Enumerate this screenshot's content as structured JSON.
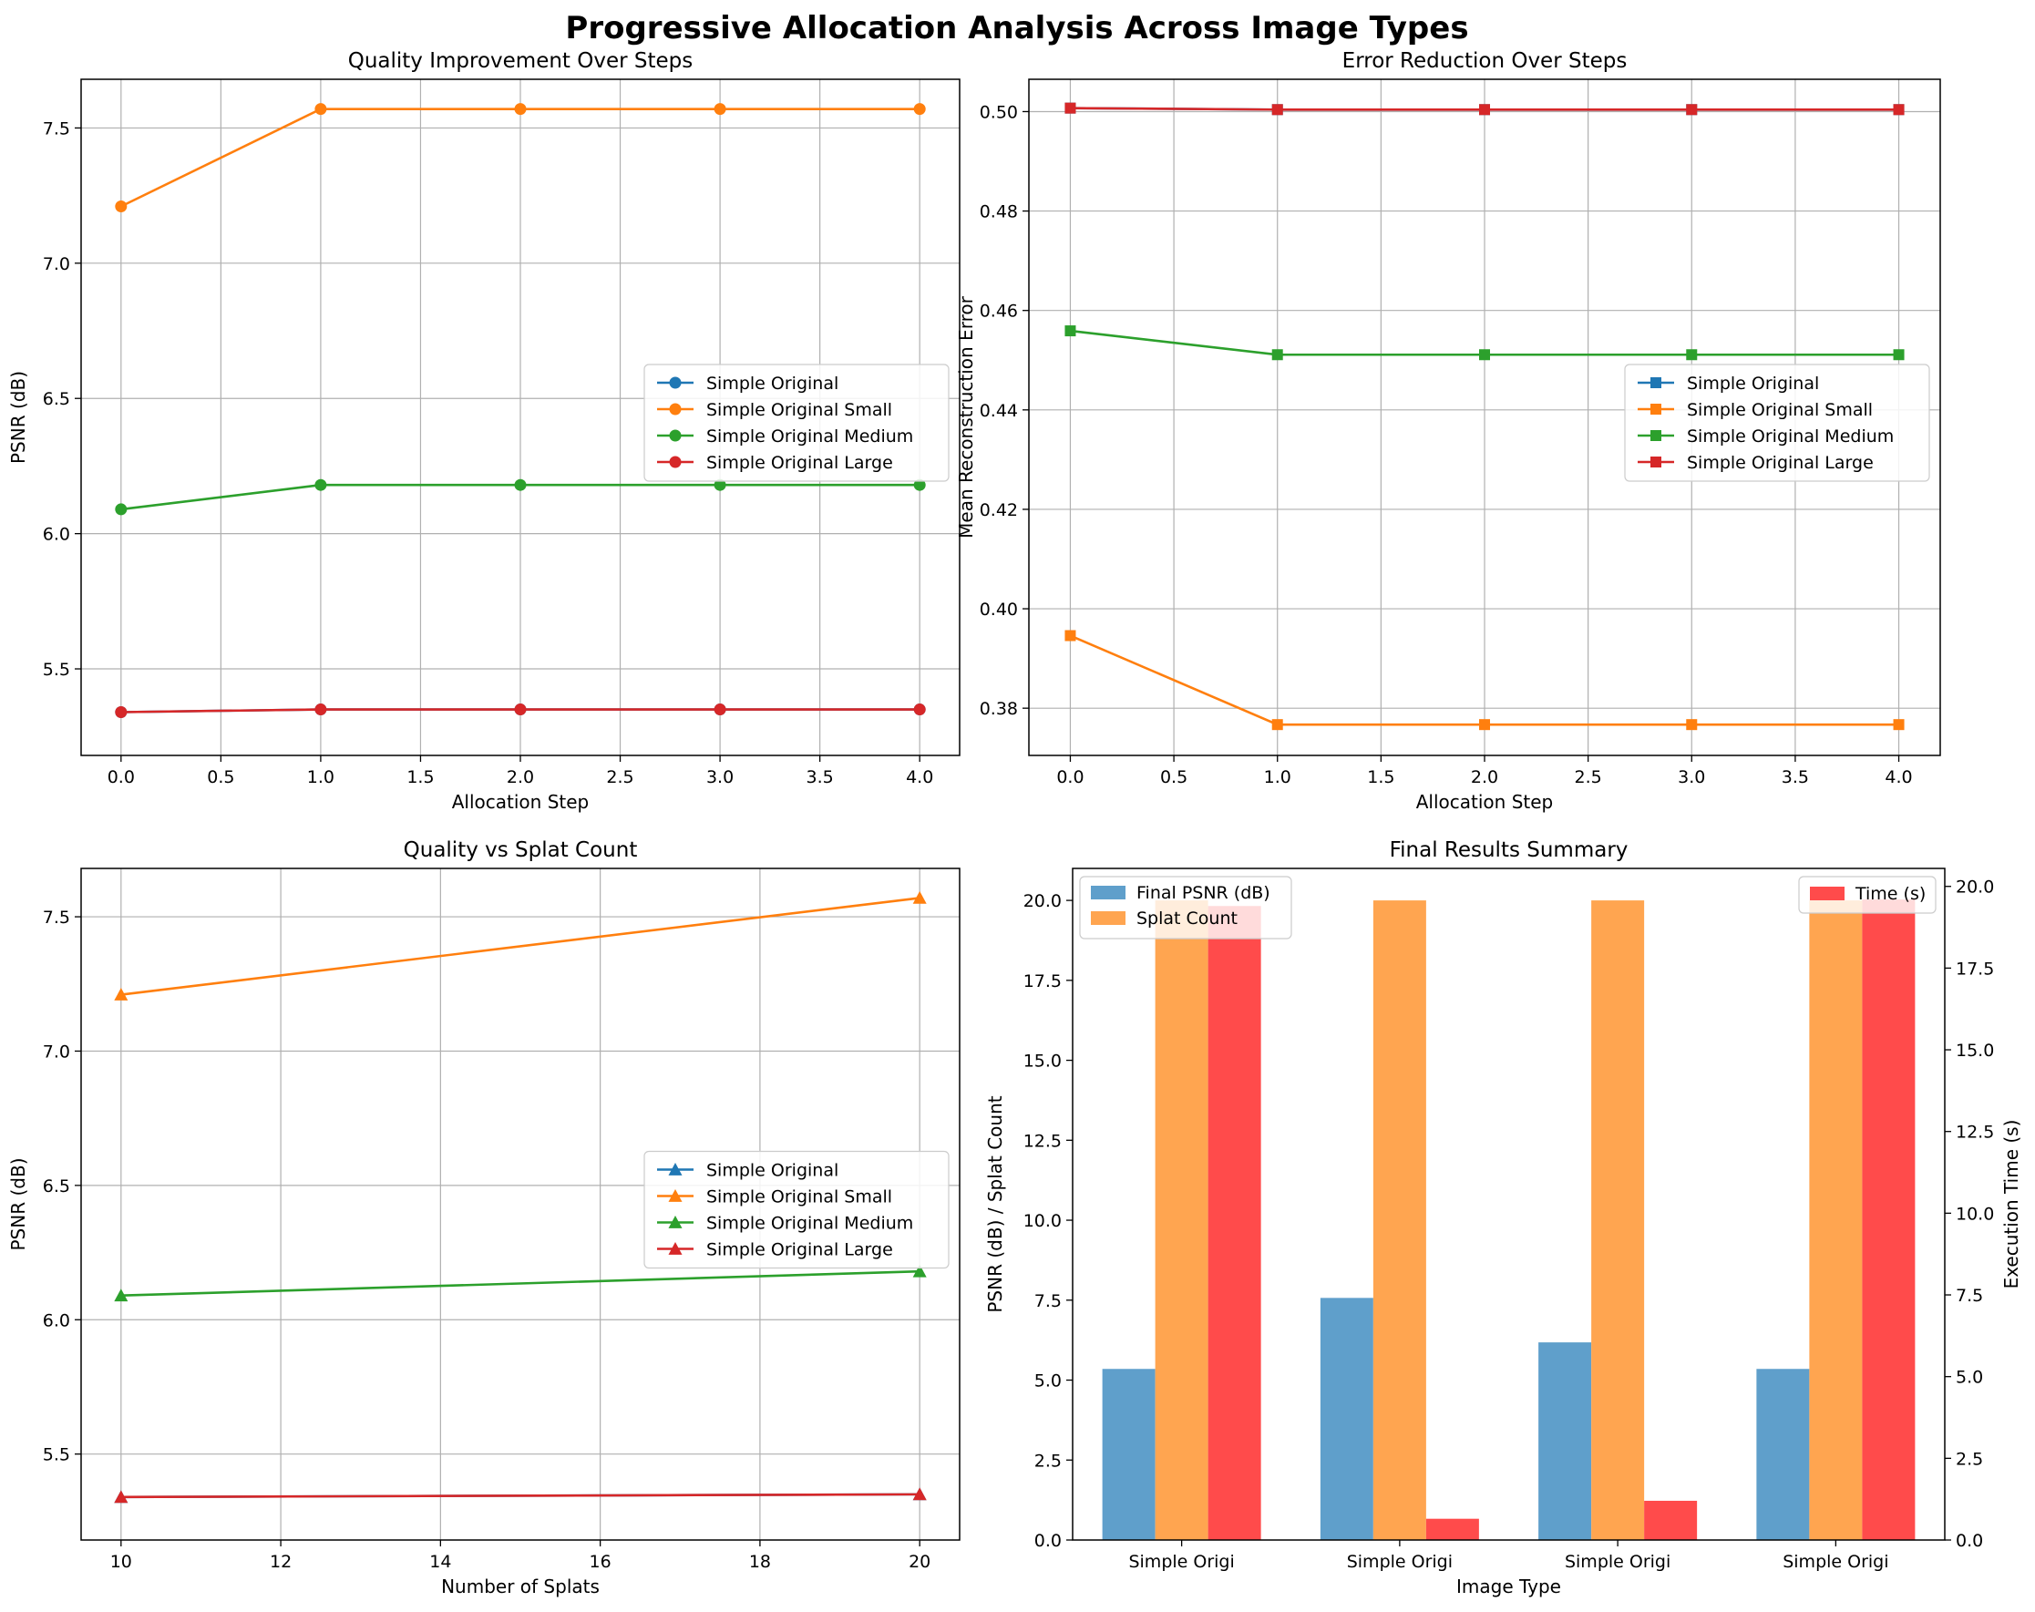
{
  "suptitle": "Progressive Allocation Analysis Across Image Types",
  "colors": {
    "blue": "#1f77b4",
    "orange": "#ff7f0e",
    "green": "#2ca02c",
    "red": "#d62728",
    "bar_psnr": "#5f9fcb",
    "bar_splat": "#ffa550",
    "bar_time": "#ff4b4b",
    "time_axis": "#ff0000"
  },
  "chart_data": [
    {
      "id": "quality",
      "type": "line",
      "title": "Quality Improvement Over Steps",
      "xlabel": "Allocation Step",
      "ylabel": "PSNR (dB)",
      "xlim": [
        -0.2,
        4.2
      ],
      "ylim": [
        5.18,
        7.68
      ],
      "xticks": [
        0.0,
        0.5,
        1.0,
        1.5,
        2.0,
        2.5,
        3.0,
        3.5,
        4.0
      ],
      "xtick_labels": [
        "0.0",
        "0.5",
        "1.0",
        "1.5",
        "2.0",
        "2.5",
        "3.0",
        "3.5",
        "4.0"
      ],
      "yticks": [
        5.5,
        6.0,
        6.5,
        7.0,
        7.5
      ],
      "ytick_labels": [
        "5.5",
        "6.0",
        "6.5",
        "7.0",
        "7.5"
      ],
      "grid": true,
      "marker": "circle",
      "legend_position": "center-right",
      "legend_entries": [
        "Simple Original",
        "Simple Original Small",
        "Simple Original Medium",
        "Simple Original Large"
      ],
      "series": [
        {
          "name": "Simple Original",
          "color": "#1f77b4",
          "x": [
            0,
            1,
            2,
            3,
            4
          ],
          "y": [
            5.34,
            5.35,
            5.35,
            5.35,
            5.35
          ]
        },
        {
          "name": "Simple Original Small",
          "color": "#ff7f0e",
          "x": [
            0,
            1,
            2,
            3,
            4
          ],
          "y": [
            7.21,
            7.57,
            7.57,
            7.57,
            7.57
          ]
        },
        {
          "name": "Simple Original Medium",
          "color": "#2ca02c",
          "x": [
            0,
            1,
            2,
            3,
            4
          ],
          "y": [
            6.09,
            6.18,
            6.18,
            6.18,
            6.18
          ]
        },
        {
          "name": "Simple Original Large",
          "color": "#d62728",
          "x": [
            0,
            1,
            2,
            3,
            4
          ],
          "y": [
            5.34,
            5.35,
            5.35,
            5.35,
            5.35
          ]
        }
      ]
    },
    {
      "id": "error",
      "type": "line",
      "title": "Error Reduction Over Steps",
      "xlabel": "Allocation Step",
      "ylabel": "Mean Reconstruction Error",
      "xlim": [
        -0.2,
        4.2
      ],
      "ylim": [
        0.3705,
        0.5065
      ],
      "xticks": [
        0.0,
        0.5,
        1.0,
        1.5,
        2.0,
        2.5,
        3.0,
        3.5,
        4.0
      ],
      "xtick_labels": [
        "0.0",
        "0.5",
        "1.0",
        "1.5",
        "2.0",
        "2.5",
        "3.0",
        "3.5",
        "4.0"
      ],
      "yticks": [
        0.38,
        0.4,
        0.42,
        0.44,
        0.46,
        0.48,
        0.5
      ],
      "ytick_labels": [
        "0.38",
        "0.40",
        "0.42",
        "0.44",
        "0.46",
        "0.48",
        "0.50"
      ],
      "grid": true,
      "marker": "square",
      "legend_position": "center-right",
      "legend_entries": [
        "Simple Original",
        "Simple Original Small",
        "Simple Original Medium",
        "Simple Original Large"
      ],
      "series": [
        {
          "name": "Simple Original",
          "color": "#1f77b4",
          "x": [
            0,
            1,
            2,
            3,
            4
          ],
          "y": [
            0.5007,
            0.5004,
            0.5004,
            0.5004,
            0.5004
          ]
        },
        {
          "name": "Simple Original Small",
          "color": "#ff7f0e",
          "x": [
            0,
            1,
            2,
            3,
            4
          ],
          "y": [
            0.3946,
            0.3767,
            0.3767,
            0.3767,
            0.3767
          ]
        },
        {
          "name": "Simple Original Medium",
          "color": "#2ca02c",
          "x": [
            0,
            1,
            2,
            3,
            4
          ],
          "y": [
            0.4559,
            0.4511,
            0.4511,
            0.4511,
            0.4511
          ]
        },
        {
          "name": "Simple Original Large",
          "color": "#d62728",
          "x": [
            0,
            1,
            2,
            3,
            4
          ],
          "y": [
            0.5007,
            0.5004,
            0.5004,
            0.5004,
            0.5004
          ]
        }
      ]
    },
    {
      "id": "splat",
      "type": "line",
      "title": "Quality vs Splat Count",
      "xlabel": "Number of Splats",
      "ylabel": "PSNR (dB)",
      "xlim": [
        9.5,
        20.5
      ],
      "ylim": [
        5.18,
        7.68
      ],
      "xticks": [
        10,
        12,
        14,
        16,
        18,
        20
      ],
      "xtick_labels": [
        "10",
        "12",
        "14",
        "16",
        "18",
        "20"
      ],
      "yticks": [
        5.5,
        6.0,
        6.5,
        7.0,
        7.5
      ],
      "ytick_labels": [
        "5.5",
        "6.0",
        "6.5",
        "7.0",
        "7.5"
      ],
      "grid": true,
      "marker": "triangle",
      "legend_position": "center-right",
      "legend_entries": [
        "Simple Original",
        "Simple Original Small",
        "Simple Original Medium",
        "Simple Original Large"
      ],
      "series": [
        {
          "name": "Simple Original",
          "color": "#1f77b4",
          "x": [
            10,
            20
          ],
          "y": [
            5.34,
            5.35
          ]
        },
        {
          "name": "Simple Original Small",
          "color": "#ff7f0e",
          "x": [
            10,
            20
          ],
          "y": [
            7.21,
            7.57
          ]
        },
        {
          "name": "Simple Original Medium",
          "color": "#2ca02c",
          "x": [
            10,
            20
          ],
          "y": [
            6.09,
            6.18
          ]
        },
        {
          "name": "Simple Original Large",
          "color": "#d62728",
          "x": [
            10,
            20
          ],
          "y": [
            5.34,
            5.35
          ]
        }
      ]
    },
    {
      "id": "summary",
      "type": "bar",
      "title": "Final Results Summary",
      "xlabel": "Image Type",
      "ylabel": "PSNR (dB) / Splat Count",
      "y2label": "Execution Time (s)",
      "categories": [
        "Simple Origi",
        "Simple Origi",
        "Simple Origi",
        "Simple Origi"
      ],
      "ylim": [
        0,
        21
      ],
      "yticks": [
        0.0,
        2.5,
        5.0,
        7.5,
        10.0,
        12.5,
        15.0,
        17.5,
        20.0
      ],
      "ytick_labels": [
        "0.0",
        "2.5",
        "5.0",
        "7.5",
        "10.0",
        "12.5",
        "15.0",
        "17.5",
        "20.0"
      ],
      "y2lim": [
        0,
        20.55
      ],
      "y2ticks": [
        0.0,
        2.5,
        5.0,
        7.5,
        10.0,
        12.5,
        15.0,
        17.5,
        20.0
      ],
      "y2tick_labels": [
        "0.0",
        "2.5",
        "5.0",
        "7.5",
        "10.0",
        "12.5",
        "15.0",
        "17.5",
        "20.0"
      ],
      "grid": false,
      "legend_left": {
        "position": "upper-left",
        "entries": [
          "Final PSNR (dB)",
          "Splat Count"
        ]
      },
      "legend_right": {
        "position": "upper-right",
        "entries": [
          "Time (s)"
        ]
      },
      "series": [
        {
          "name": "Final PSNR (dB)",
          "color": "#5f9fcb",
          "axis": "left",
          "values": [
            5.35,
            7.57,
            6.18,
            5.35
          ]
        },
        {
          "name": "Splat Count",
          "color": "#ffa550",
          "axis": "left",
          "values": [
            20,
            20,
            20,
            20
          ]
        },
        {
          "name": "Time (s)",
          "color": "#ff4b4b",
          "axis": "right",
          "values": [
            19.4,
            0.65,
            1.2,
            19.6
          ]
        }
      ]
    }
  ]
}
